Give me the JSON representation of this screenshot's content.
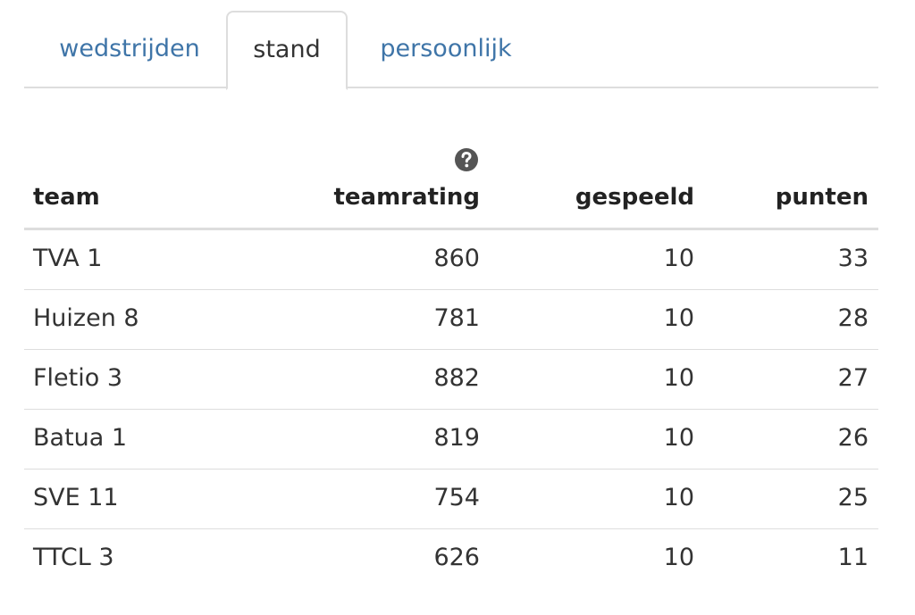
{
  "tabs": [
    {
      "label": "wedstrijden",
      "active": false
    },
    {
      "label": "stand",
      "active": true
    },
    {
      "label": "persoonlijk",
      "active": false
    }
  ],
  "table": {
    "help_icon": "question-circle-icon",
    "headers": {
      "team": "team",
      "teamrating": "teamrating",
      "gespeeld": "gespeeld",
      "punten": "punten"
    },
    "rows": [
      {
        "team": "TVA 1",
        "teamrating": "860",
        "gespeeld": "10",
        "punten": "33"
      },
      {
        "team": "Huizen 8",
        "teamrating": "781",
        "gespeeld": "10",
        "punten": "28"
      },
      {
        "team": "Fletio 3",
        "teamrating": "882",
        "gespeeld": "10",
        "punten": "27"
      },
      {
        "team": "Batua 1",
        "teamrating": "819",
        "gespeeld": "10",
        "punten": "26"
      },
      {
        "team": "SVE 11",
        "teamrating": "754",
        "gespeeld": "10",
        "punten": "25"
      },
      {
        "team": "TTCL 3",
        "teamrating": "626",
        "gespeeld": "10",
        "punten": "11"
      }
    ]
  },
  "colors": {
    "link": "#3f75a8",
    "text": "#333333",
    "border": "#dddddd",
    "icon": "#555555"
  }
}
